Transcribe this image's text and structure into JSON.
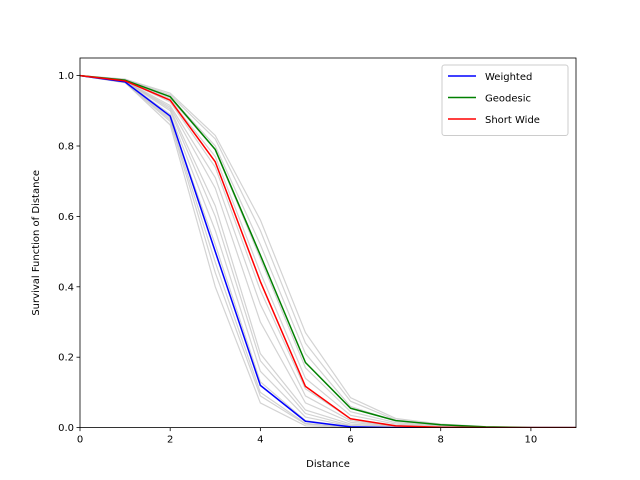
{
  "chart_data": {
    "type": "line",
    "title": "",
    "xlabel": "Distance",
    "ylabel": "Survival Function of Distance",
    "xlim": [
      0,
      11
    ],
    "ylim": [
      0,
      1.05
    ],
    "xticks": [
      0,
      2,
      4,
      6,
      8,
      10
    ],
    "xtick_labels": [
      "0",
      "2",
      "4",
      "6",
      "8",
      "10"
    ],
    "yticks": [
      0,
      0.2,
      0.4,
      0.6,
      0.8,
      1.0
    ],
    "ytick_labels": [
      "0.0",
      "0.2",
      "0.4",
      "0.6",
      "0.8",
      "1.0"
    ],
    "grid": false,
    "legend_position": "top-right",
    "x": [
      0,
      1,
      2,
      3,
      4,
      5,
      6,
      7,
      8,
      9,
      10,
      11
    ],
    "series": [
      {
        "name": "Weighted",
        "color": "#0000ff",
        "values": [
          1.0,
          0.982,
          0.885,
          0.5,
          0.12,
          0.018,
          0.002,
          0.0,
          0.0,
          0.0,
          0.0,
          0.0
        ]
      },
      {
        "name": "Geodesic",
        "color": "#008000",
        "values": [
          1.0,
          0.987,
          0.94,
          0.79,
          0.49,
          0.185,
          0.055,
          0.02,
          0.008,
          0.002,
          0.0,
          0.0
        ]
      },
      {
        "name": "Short Wide",
        "color": "#ff0000",
        "values": [
          1.0,
          0.985,
          0.93,
          0.755,
          0.415,
          0.117,
          0.025,
          0.005,
          0.001,
          0.0,
          0.0,
          0.0
        ]
      }
    ],
    "background_bundle": {
      "color": "#c0c0c0",
      "description_curves": [
        [
          1.0,
          0.98,
          0.86,
          0.4,
          0.07,
          0.005,
          0.0,
          0.0,
          0.0,
          0.0,
          0.0,
          0.0
        ],
        [
          1.0,
          0.98,
          0.87,
          0.44,
          0.09,
          0.01,
          0.001,
          0.0,
          0.0,
          0.0,
          0.0,
          0.0
        ],
        [
          1.0,
          0.981,
          0.875,
          0.47,
          0.1,
          0.012,
          0.001,
          0.0,
          0.0,
          0.0,
          0.0,
          0.0
        ],
        [
          1.0,
          0.982,
          0.88,
          0.52,
          0.13,
          0.02,
          0.002,
          0.0,
          0.0,
          0.0,
          0.0,
          0.0
        ],
        [
          1.0,
          0.983,
          0.89,
          0.56,
          0.16,
          0.03,
          0.004,
          0.0,
          0.0,
          0.0,
          0.0,
          0.0
        ],
        [
          1.0,
          0.984,
          0.9,
          0.6,
          0.19,
          0.04,
          0.006,
          0.001,
          0.0,
          0.0,
          0.0,
          0.0
        ],
        [
          1.0,
          0.985,
          0.905,
          0.63,
          0.21,
          0.05,
          0.01,
          0.002,
          0.0,
          0.0,
          0.0,
          0.0
        ],
        [
          1.0,
          0.984,
          0.91,
          0.68,
          0.3,
          0.07,
          0.015,
          0.003,
          0.0,
          0.0,
          0.0,
          0.0
        ],
        [
          1.0,
          0.985,
          0.915,
          0.71,
          0.35,
          0.09,
          0.02,
          0.004,
          0.001,
          0.0,
          0.0,
          0.0
        ],
        [
          1.0,
          0.986,
          0.925,
          0.74,
          0.39,
          0.11,
          0.025,
          0.006,
          0.001,
          0.0,
          0.0,
          0.0
        ],
        [
          1.0,
          0.986,
          0.93,
          0.77,
          0.44,
          0.14,
          0.035,
          0.01,
          0.002,
          0.0,
          0.0,
          0.0
        ],
        [
          1.0,
          0.987,
          0.935,
          0.79,
          0.48,
          0.17,
          0.045,
          0.014,
          0.004,
          0.001,
          0.0,
          0.0
        ],
        [
          1.0,
          0.988,
          0.94,
          0.8,
          0.52,
          0.21,
          0.06,
          0.018,
          0.006,
          0.002,
          0.0,
          0.0
        ],
        [
          1.0,
          0.989,
          0.945,
          0.82,
          0.56,
          0.24,
          0.075,
          0.022,
          0.008,
          0.002,
          0.0,
          0.0
        ],
        [
          1.0,
          0.99,
          0.95,
          0.83,
          0.59,
          0.27,
          0.085,
          0.026,
          0.01,
          0.003,
          0.001,
          0.0
        ]
      ]
    }
  }
}
